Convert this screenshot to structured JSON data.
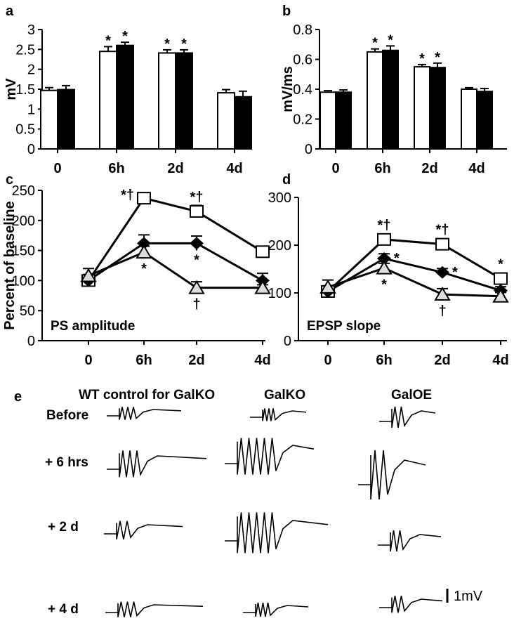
{
  "chart_data": [
    {
      "panel": "a",
      "type": "bar",
      "ylabel": "mV",
      "ylim": [
        0,
        3
      ],
      "yticks": [
        "0",
        "0.5",
        "1",
        "1.5",
        "2",
        "2.5",
        "3"
      ],
      "categories": [
        "0",
        "6h",
        "2d",
        "4d"
      ],
      "series": [
        {
          "color": "#ffffff",
          "values": [
            1.47,
            2.45,
            2.41,
            1.41
          ],
          "errors": [
            0.07,
            0.12,
            0.08,
            0.08
          ]
        },
        {
          "color": "#000000",
          "values": [
            1.49,
            2.6,
            2.41,
            1.31
          ],
          "errors": [
            0.1,
            0.08,
            0.08,
            0.14
          ]
        }
      ],
      "markers": [
        {
          "series": 0,
          "index": 1,
          "text": "*"
        },
        {
          "series": 1,
          "index": 1,
          "text": "*"
        },
        {
          "series": 0,
          "index": 2,
          "text": "*"
        },
        {
          "series": 1,
          "index": 2,
          "text": "*"
        }
      ]
    },
    {
      "panel": "b",
      "type": "bar",
      "ylabel": "mV/ms",
      "ylim": [
        0,
        0.8
      ],
      "yticks": [
        "0",
        "0.2",
        "0.4",
        "0.6",
        "0.8"
      ],
      "categories": [
        "0",
        "6h",
        "2d",
        "4d"
      ],
      "series": [
        {
          "color": "#ffffff",
          "values": [
            0.38,
            0.65,
            0.55,
            0.4
          ],
          "errors": [
            0.01,
            0.02,
            0.015,
            0.01
          ]
        },
        {
          "color": "#000000",
          "values": [
            0.38,
            0.66,
            0.545,
            0.385
          ],
          "errors": [
            0.015,
            0.03,
            0.03,
            0.02
          ]
        }
      ],
      "markers": [
        {
          "series": 0,
          "index": 1,
          "text": "*"
        },
        {
          "series": 1,
          "index": 1,
          "text": "*"
        },
        {
          "series": 0,
          "index": 2,
          "text": "*"
        },
        {
          "series": 1,
          "index": 2,
          "text": "*"
        }
      ]
    },
    {
      "panel": "c",
      "type": "line",
      "ylabel": "Percent of baseline",
      "annotation": "PS amplitude",
      "ylim": [
        0,
        250
      ],
      "yticks": [
        "0",
        "50",
        "100",
        "150",
        "200",
        "250"
      ],
      "x": [
        "0",
        "6h",
        "2d",
        "4d"
      ],
      "series": [
        {
          "marker": "square",
          "values": [
            100,
            237,
            215,
            148
          ],
          "errors": [
            10,
            8,
            10,
            5
          ]
        },
        {
          "marker": "diamond",
          "values": [
            100,
            162,
            162,
            100
          ],
          "errors": [
            10,
            14,
            12,
            12
          ]
        },
        {
          "marker": "triangle",
          "values": [
            108,
            147,
            88,
            88
          ],
          "errors": [
            12,
            10,
            10,
            5
          ]
        }
      ],
      "markers": [
        {
          "x": 1,
          "y": 237,
          "text": "*†",
          "pos": "left"
        },
        {
          "x": 2,
          "y": 215,
          "text": "*†",
          "pos": "above"
        },
        {
          "x": 1,
          "y": 147,
          "text": "*",
          "pos": "below"
        },
        {
          "x": 2,
          "y": 162,
          "text": "*",
          "pos": "below"
        },
        {
          "x": 2,
          "y": 88,
          "text": "†",
          "pos": "below"
        }
      ]
    },
    {
      "panel": "d",
      "type": "line",
      "ylabel": "",
      "annotation": "EPSP slope",
      "ylim": [
        0,
        300
      ],
      "yticks": [
        "0",
        "100",
        "200",
        "300"
      ],
      "x": [
        "0",
        "6h",
        "2d",
        "4d"
      ],
      "series": [
        {
          "marker": "square",
          "values": [
            103,
            212,
            202,
            130
          ],
          "errors": [
            12,
            10,
            10,
            10
          ]
        },
        {
          "marker": "diamond",
          "values": [
            103,
            172,
            143,
            105
          ],
          "errors": [
            10,
            10,
            8,
            8
          ]
        },
        {
          "marker": "triangle",
          "values": [
            112,
            152,
            97,
            93
          ],
          "errors": [
            15,
            10,
            12,
            8
          ]
        }
      ],
      "markers": [
        {
          "x": 1,
          "y": 212,
          "text": "*†",
          "pos": "above"
        },
        {
          "x": 2,
          "y": 202,
          "text": "*†",
          "pos": "above"
        },
        {
          "x": 1,
          "y": 172,
          "text": "*",
          "pos": "right"
        },
        {
          "x": 1,
          "y": 152,
          "text": "*",
          "pos": "below"
        },
        {
          "x": 2,
          "y": 143,
          "text": "*",
          "pos": "right"
        },
        {
          "x": 2,
          "y": 97,
          "text": "†",
          "pos": "below"
        },
        {
          "x": 3,
          "y": 130,
          "text": "*",
          "pos": "above"
        }
      ]
    }
  ],
  "panel_e": {
    "letter": "e",
    "columns": [
      "WT control for GalKO",
      "GalKO",
      "GalOE"
    ],
    "rows": [
      "Before",
      "+ 6 hrs",
      "+ 2 d",
      "+ 4 d"
    ],
    "scale_bar": "1mV"
  }
}
